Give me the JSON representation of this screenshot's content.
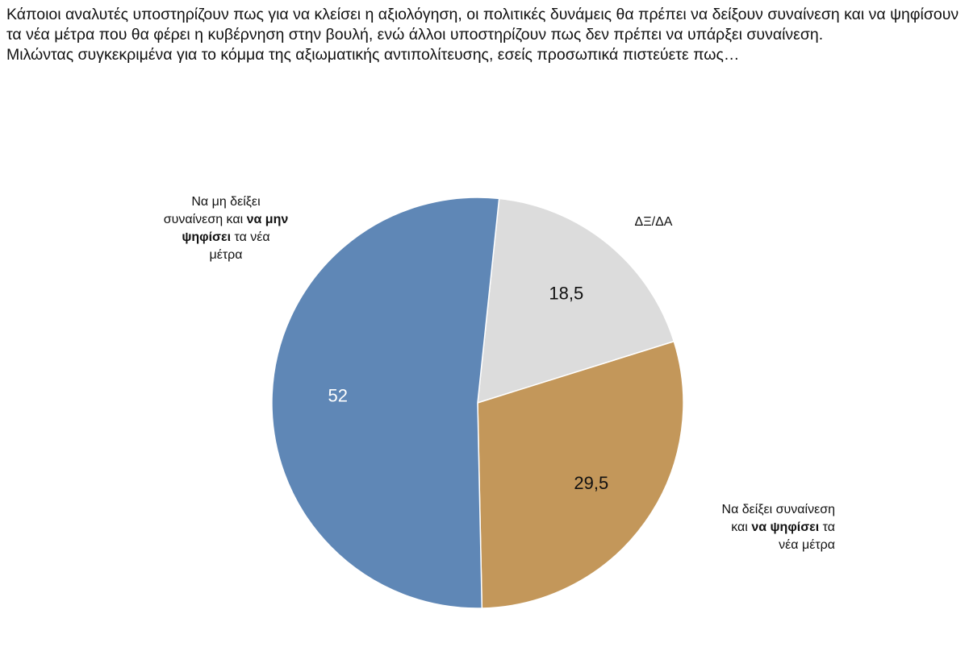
{
  "question": {
    "line1": "Κάποιοι αναλυτές υποστηρίζουν πως για να κλείσει η αξιολόγηση, οι πολιτικές δυνάμεις θα πρέπει να δείξουν συναίνεση και να ψηφίσουν τα νέα μέτρα που θα φέρει η κυβέρνηση στην βουλή, ενώ άλλοι υποστηρίζουν πως δεν πρέπει να υπάρξει συναίνεση.",
    "line2": "Μιλώντας συγκεκριμένα για το κόμμα της αξιωματικής αντιπολίτευσης, εσείς προσωπικά πιστεύετε πως…"
  },
  "chart_data": {
    "type": "pie",
    "slices": [
      {
        "label": "ΔΞ/ΔΑ",
        "value": 18.5,
        "value_label": "18,5",
        "color": "#dcdcdc",
        "value_text_color": "#111111"
      },
      {
        "label_parts": [
          "Να δείξει συναίνεση",
          "και ",
          "να ψηφίσει",
          " τα",
          "νέα μέτρα"
        ],
        "value": 29.5,
        "value_label": "29,5",
        "color": "#c3975a",
        "value_text_color": "#111111"
      },
      {
        "label_parts": [
          "Να μη δείξει",
          "συναίνεση και ",
          "να μην",
          "ψηφίσει",
          " τα νέα",
          "μέτρα"
        ],
        "value": 52,
        "value_label": "52",
        "color": "#5f87b6",
        "value_text_color": "#ffffff"
      }
    ],
    "start_angle_deg": 6,
    "direction": "clockwise"
  }
}
